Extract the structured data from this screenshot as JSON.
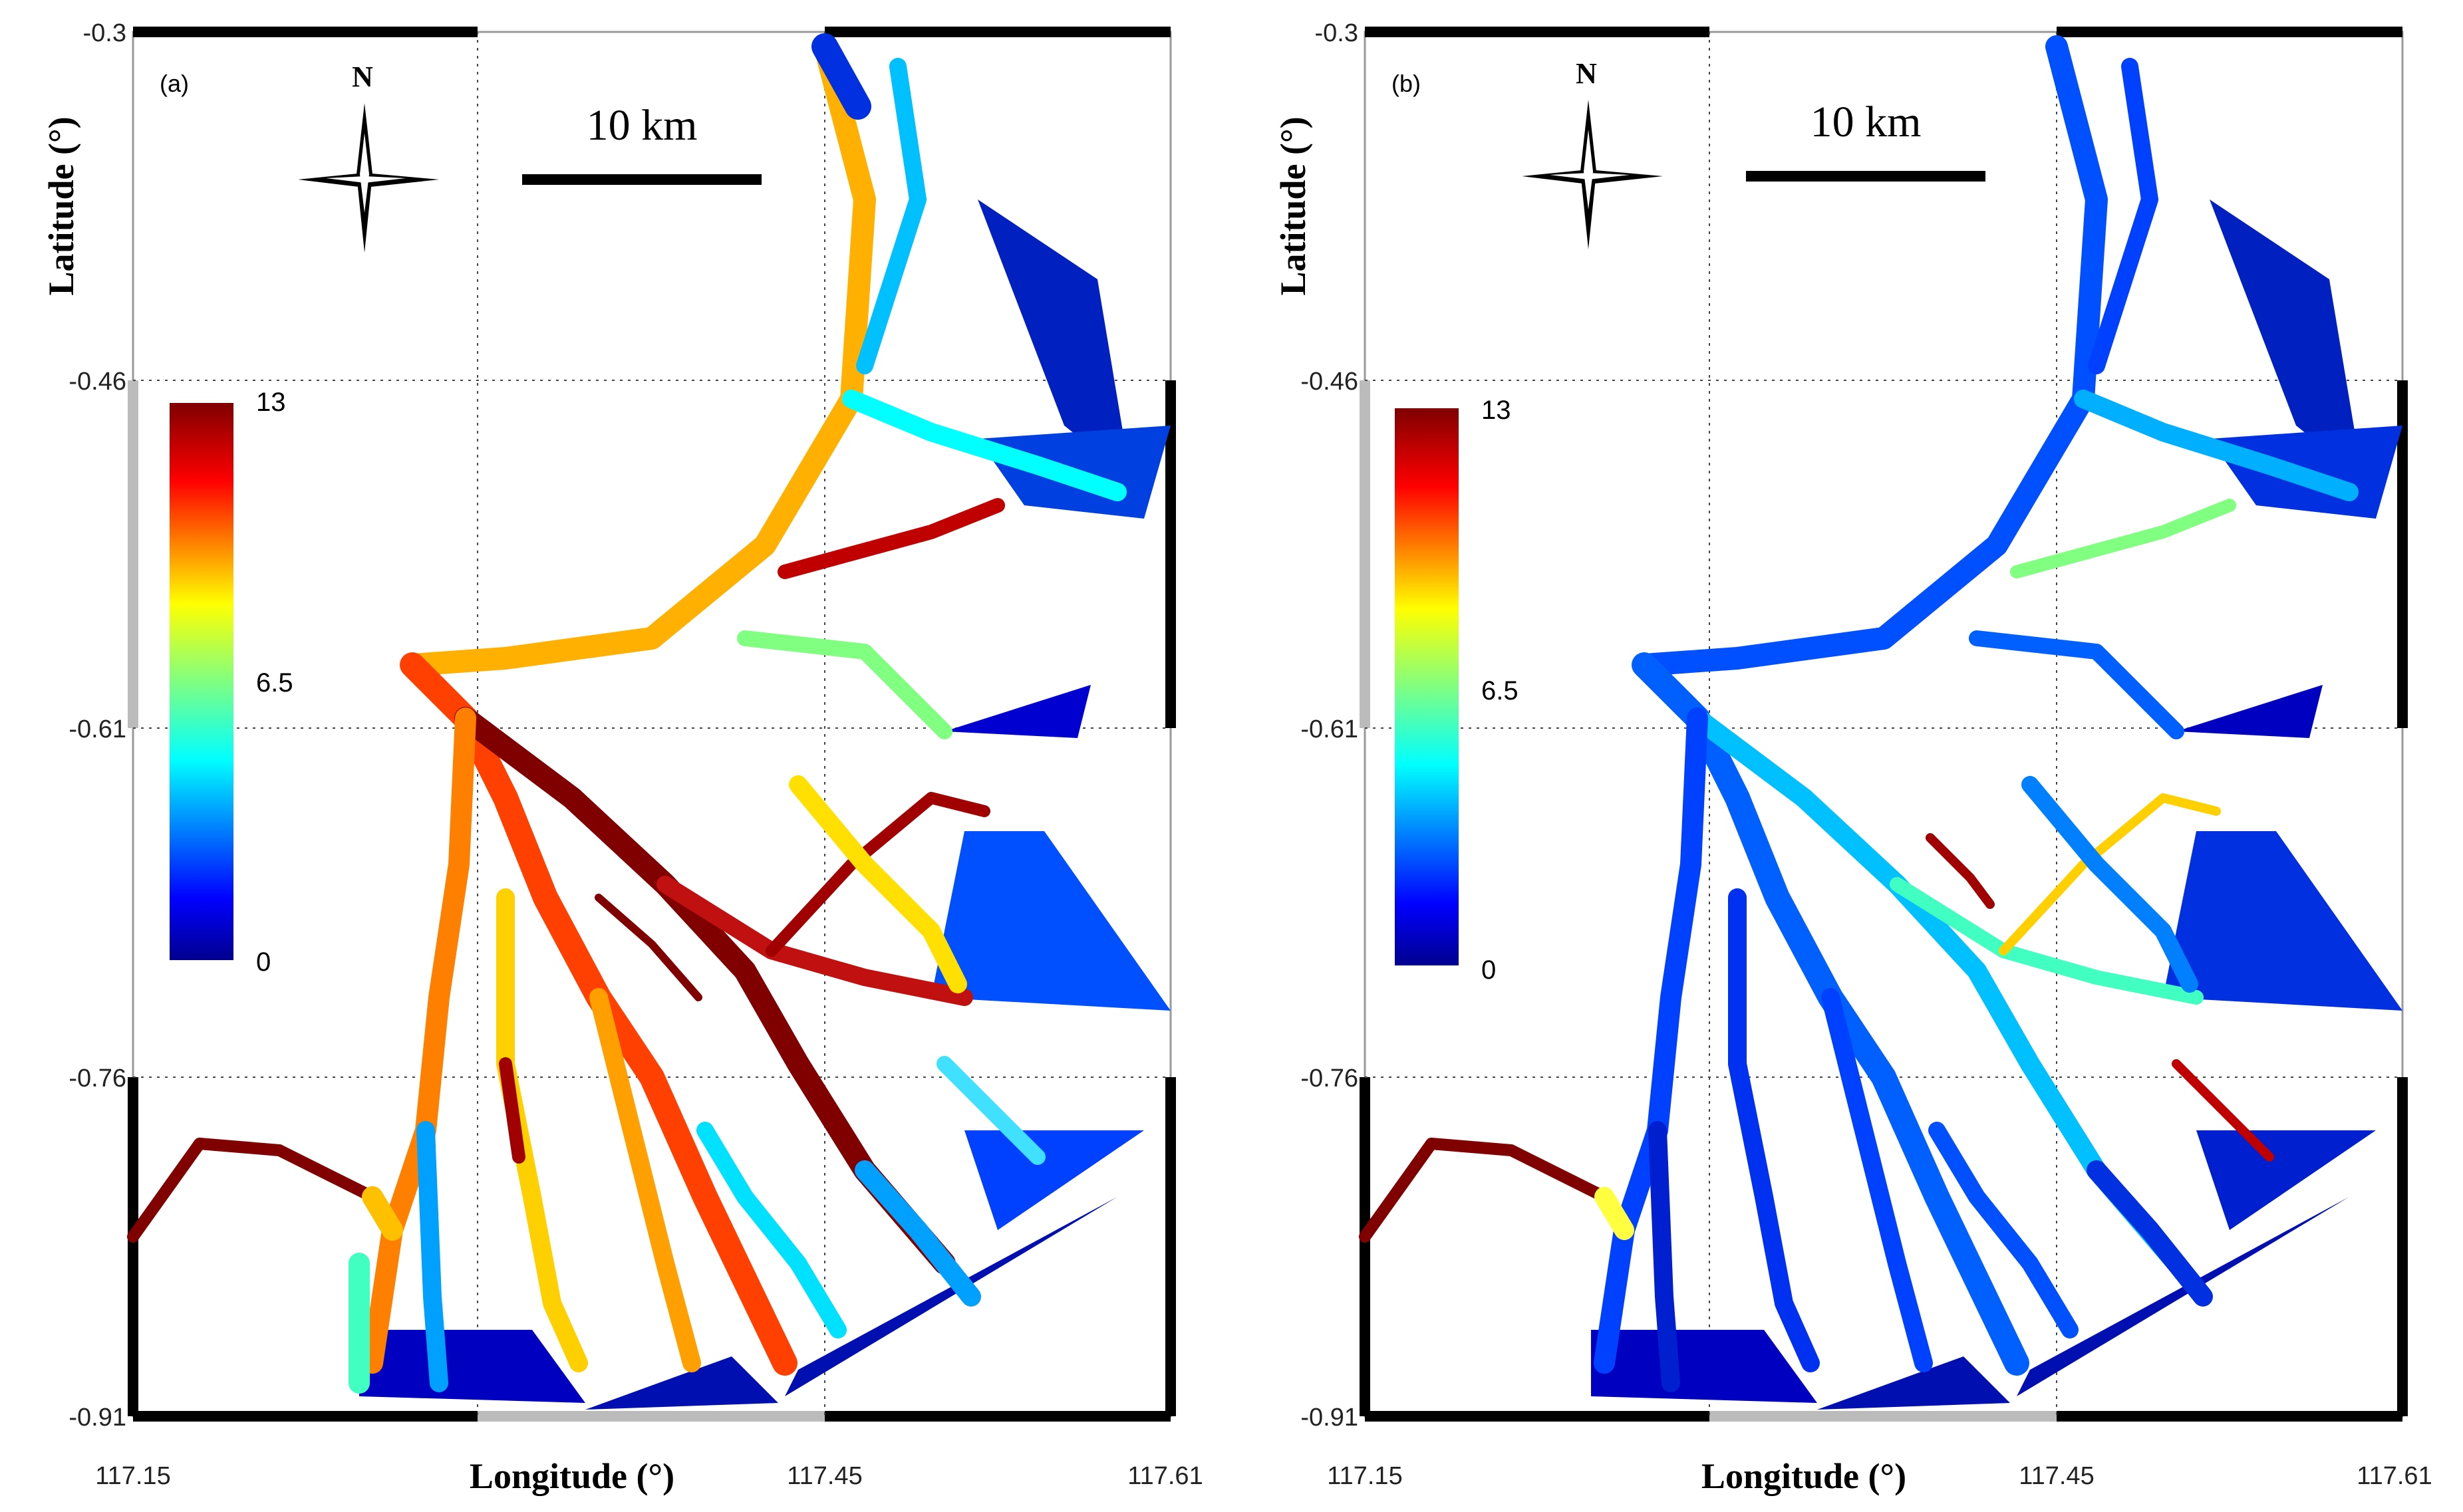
{
  "panels": [
    {
      "label": "(a)",
      "north": "N",
      "scale_bar": "10 km",
      "colorbar": {
        "max": "13",
        "mid": "6.5",
        "min": "0"
      },
      "y_ticks": [
        "-0.3",
        "-0.46",
        "-0.61",
        "-0.76",
        "-0.91"
      ],
      "x_ticks": [
        "117.15",
        "117.45",
        "117.61"
      ],
      "xlabel": "Longitude (°)",
      "ylabel": "Latitude (°)"
    },
    {
      "label": "(b)",
      "north": "N",
      "scale_bar": "10 km",
      "colorbar": {
        "max": "13",
        "mid": "6.5",
        "min": "0"
      },
      "y_ticks": [
        "-0.3",
        "-0.46",
        "-0.61",
        "-0.76",
        "-0.91"
      ],
      "x_ticks": [
        "117.15",
        "117.45",
        "117.61"
      ],
      "xlabel": "Longitude (°)",
      "ylabel": "Latitude (°)"
    }
  ],
  "colors": {
    "colormap": [
      "#00008f",
      "#0000ff",
      "#0080ff",
      "#00ffff",
      "#80ff80",
      "#ffff00",
      "#ff8000",
      "#ff0000",
      "#800000"
    ],
    "frame": "#000000",
    "grid": "#444444"
  }
}
